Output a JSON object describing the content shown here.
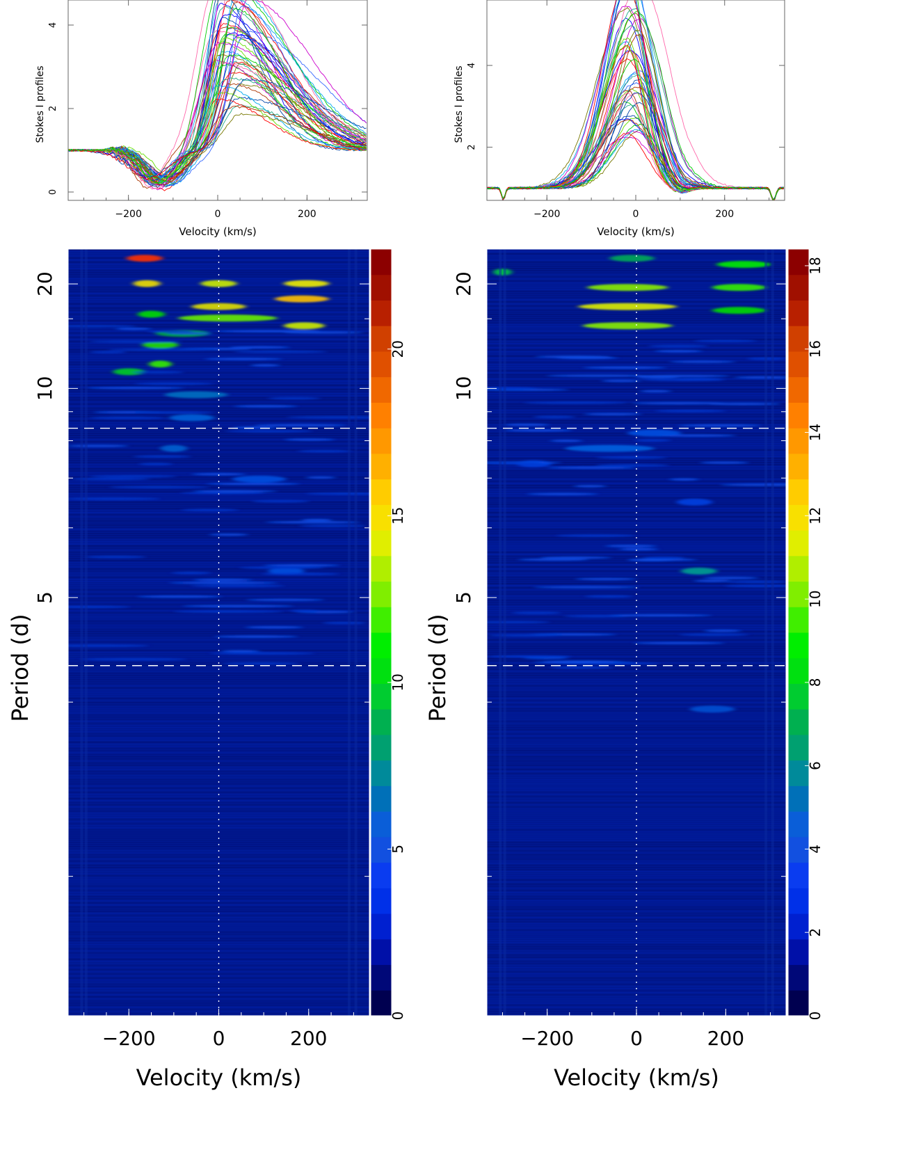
{
  "chart_data": [
    {
      "type": "line",
      "panel": "left-top",
      "ylabel": "Stokes I profiles",
      "xlabel": "Velocity (km/s)",
      "xlim": [
        -335,
        335
      ],
      "ylim": [
        -0.2,
        4.6
      ],
      "xticks": [
        -200,
        0,
        200
      ],
      "xtick_labels": [
        "−200",
        "0",
        "200"
      ],
      "yticks": [
        0,
        2,
        4
      ],
      "ytick_labels": [
        "0",
        "2",
        "4"
      ],
      "num_profiles": 50,
      "shape": "inverse P Cygni: continuum 1.0, absorption to ~0.1 near -130 km/s, emission peak 1.8-4.3 near 0 to +60 km/s"
    },
    {
      "type": "line",
      "panel": "right-top",
      "ylabel": "Stokes I profiles",
      "xlabel": "Velocity (km/s)",
      "xlim": [
        -335,
        335
      ],
      "ylim": [
        0.7,
        5.6
      ],
      "xticks": [
        -200,
        0,
        200
      ],
      "xtick_labels": [
        "−200",
        "0",
        "200"
      ],
      "yticks": [
        2,
        4
      ],
      "ytick_labels": [
        "2",
        "4"
      ],
      "num_profiles": 50,
      "shape": "single emission peak at ~0 km/s, height 2.2-5.4, continuum 1.0, narrow absorption dips near -300 and +310 km/s"
    },
    {
      "type": "heatmap",
      "panel": "left-bottom",
      "ylabel": "Period (d)",
      "xlabel": "Velocity (km/s)",
      "xlim": [
        -335,
        335
      ],
      "xticks": [
        -200,
        0,
        200
      ],
      "xtick_labels": [
        "−200",
        "0",
        "200"
      ],
      "yscale": "reciprocal",
      "ylim": [
        2.5,
        30
      ],
      "yticks": [
        5,
        10,
        20
      ],
      "ytick_labels": [
        "5",
        "10",
        "20"
      ],
      "dashed_lines_period": [
        4.3,
        8.4
      ],
      "dotted_line_velocity": 0,
      "colorbar": {
        "min": 0,
        "max": 23,
        "ticks": [
          0,
          5,
          10,
          15,
          20
        ],
        "tick_labels": [
          "0",
          "5",
          "10",
          "15",
          "20"
        ]
      }
    },
    {
      "type": "heatmap",
      "panel": "right-bottom",
      "ylabel": "Period (d)",
      "xlabel": "Velocity (km/s)",
      "xlim": [
        -335,
        335
      ],
      "xticks": [
        -200,
        0,
        200
      ],
      "xtick_labels": [
        "−200",
        "0",
        "200"
      ],
      "yscale": "reciprocal",
      "ylim": [
        2.5,
        30
      ],
      "yticks": [
        5,
        10,
        20
      ],
      "ytick_labels": [
        "5",
        "10",
        "20"
      ],
      "dashed_lines_period": [
        4.3,
        8.4
      ],
      "dotted_line_velocity": 0,
      "colorbar": {
        "min": 0,
        "max": 18.4,
        "ticks": [
          0,
          2,
          4,
          6,
          8,
          10,
          12,
          14,
          16,
          18
        ],
        "tick_labels": [
          "0",
          "2",
          "4",
          "6",
          "8",
          "10",
          "12",
          "14",
          "16",
          "18"
        ]
      }
    }
  ]
}
